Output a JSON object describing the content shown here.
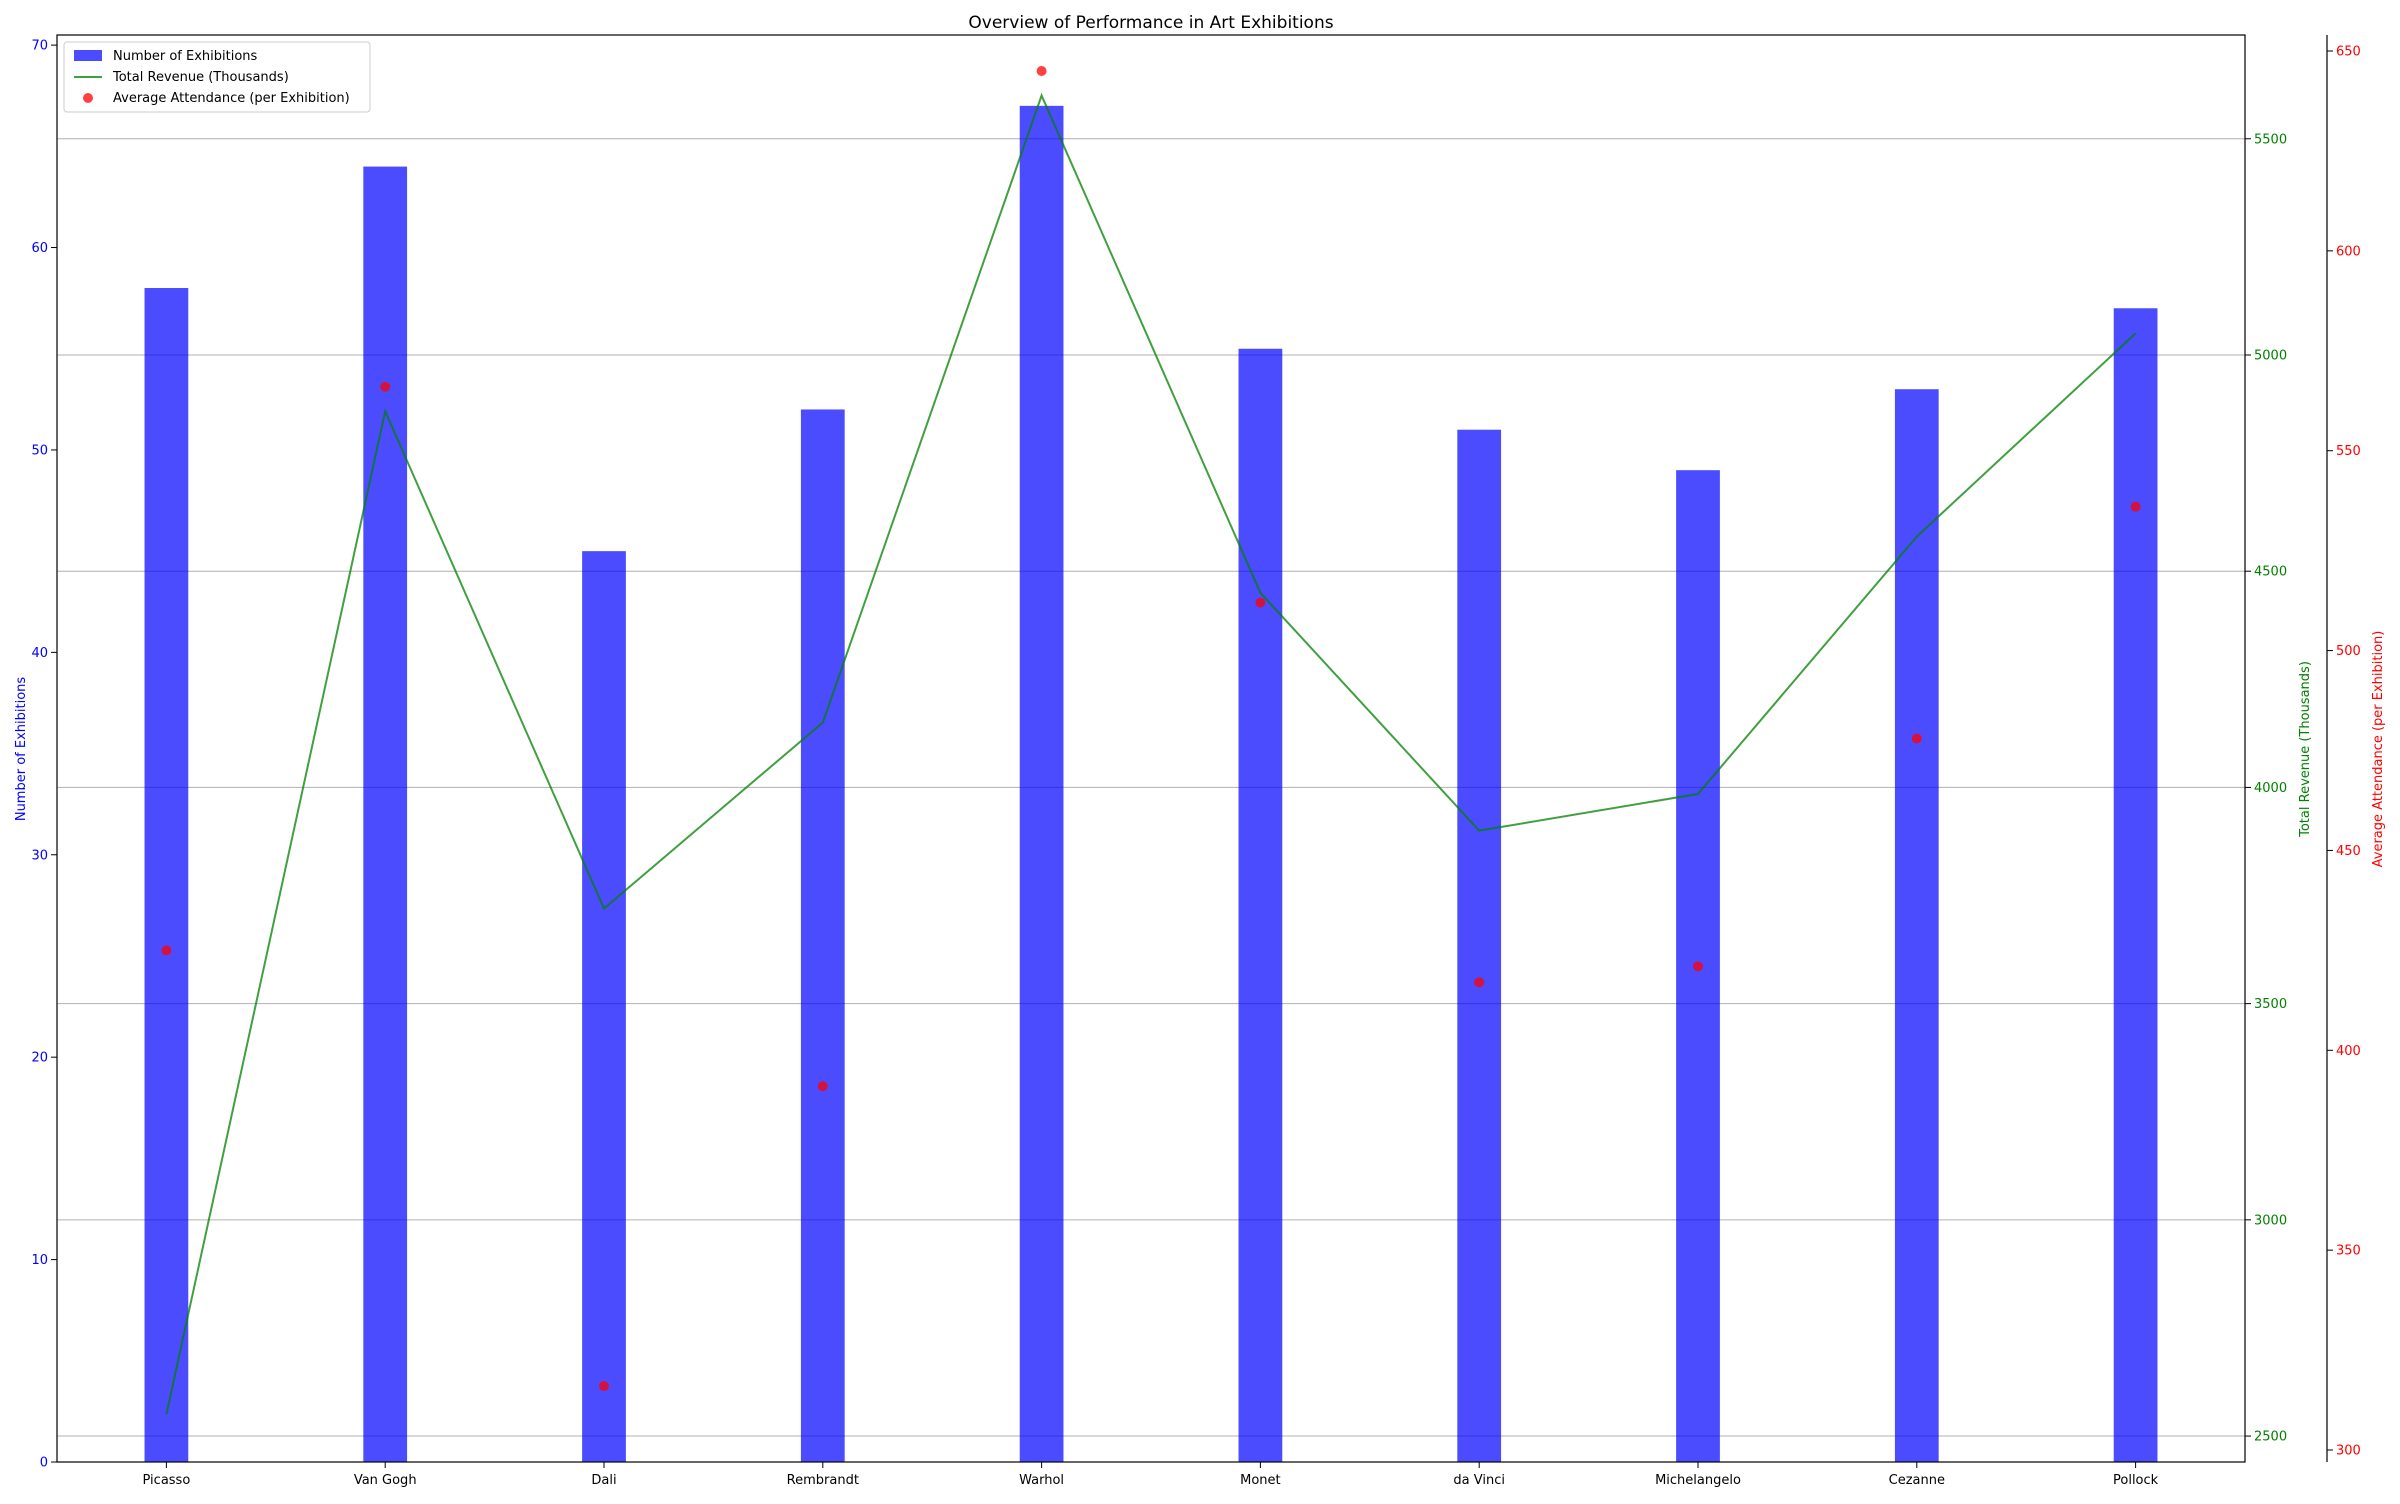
{
  "chart_data": {
    "type": "bar",
    "title": "Overview of Performance in Art Exhibitions",
    "xlabel": "",
    "categories": [
      "Picasso",
      "Van Gogh",
      "Dali",
      "Rembrandt",
      "Warhol",
      "Monet",
      "da Vinci",
      "Michelangelo",
      "Cezanne",
      "Pollock"
    ],
    "axes": {
      "left": {
        "label": "Number of Exhibitions",
        "ylim": [
          0,
          70.5
        ],
        "ticks": [
          0,
          10,
          20,
          30,
          40,
          50,
          60,
          70
        ],
        "color": "#0000ff"
      },
      "right1": {
        "label": "Total Revenue (Thousands)",
        "ylim": [
          2440,
          5740
        ],
        "ticks": [
          2500,
          3000,
          3500,
          4000,
          4500,
          5000,
          5500
        ],
        "color": "#008000"
      },
      "right2": {
        "label": "Average Attendance (per Exhibition)",
        "ylim": [
          297,
          654
        ],
        "ticks": [
          300,
          350,
          400,
          450,
          500,
          550,
          600,
          650
        ],
        "color": "#ff0000"
      }
    },
    "series": [
      {
        "name": "Number of Exhibitions",
        "type": "bar",
        "axis": "left",
        "color": "#0000ff",
        "values": [
          58,
          64,
          45,
          52,
          67,
          55,
          51,
          49,
          53,
          57
        ]
      },
      {
        "name": "Total Revenue (Thousands)",
        "type": "line",
        "axis": "right1",
        "color": "#008000",
        "values": [
          2550,
          4870,
          3720,
          4150,
          5600,
          4450,
          3900,
          3985,
          4580,
          5050
        ]
      },
      {
        "name": "Average Attendance (per Exhibition)",
        "type": "scatter",
        "axis": "right2",
        "color": "#ff0000",
        "values": [
          425,
          566,
          316,
          391,
          645,
          512,
          417,
          421,
          478,
          536
        ]
      }
    ],
    "grid": "horizontal, right1 axis",
    "legend_position": "top-left"
  }
}
